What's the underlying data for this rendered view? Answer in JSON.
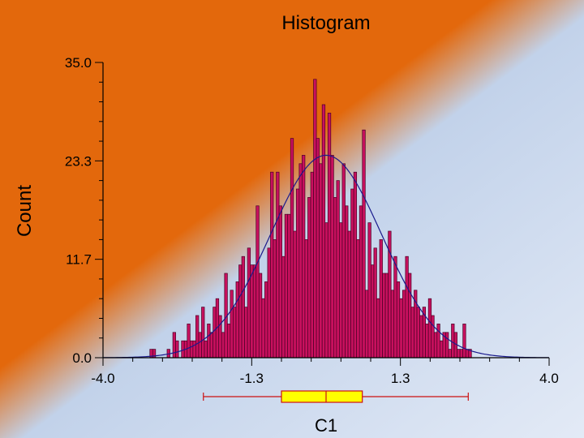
{
  "chart_data": {
    "type": "histogram",
    "title": "Histogram",
    "xlabel": "C1",
    "ylabel": "Count",
    "xlim": [
      -4.0,
      4.0
    ],
    "ylim": [
      0.0,
      35.0
    ],
    "x_ticks": [
      "-4.0",
      "-1.3",
      "1.3",
      "4.0"
    ],
    "y_ticks": [
      "0.0",
      "11.7",
      "23.3",
      "35.0"
    ],
    "bin_start": -3.16,
    "bin_width": 0.0515,
    "counts": [
      1,
      1,
      0,
      0,
      0,
      0,
      1,
      0,
      3,
      2,
      0,
      2,
      2,
      4,
      2,
      2,
      5,
      3,
      6,
      2,
      4,
      3,
      6,
      7,
      5,
      3,
      10,
      4,
      8,
      6,
      9,
      11,
      12,
      6,
      13,
      11,
      11,
      18,
      10,
      7,
      9,
      13,
      22,
      14,
      22,
      18,
      12,
      17,
      17,
      26,
      15,
      20,
      23,
      24,
      14,
      19,
      22,
      33,
      26,
      23,
      30,
      16,
      29,
      24,
      19,
      21,
      16,
      23,
      18,
      15,
      20,
      22,
      14,
      18,
      27,
      8,
      16,
      11,
      13,
      7,
      14,
      10,
      10,
      15,
      8,
      12,
      9,
      7,
      8,
      12,
      10,
      6,
      8,
      6,
      5,
      6,
      4,
      7,
      5,
      3,
      4,
      2,
      3,
      3,
      1,
      4,
      3,
      1,
      1,
      4,
      1,
      1
    ],
    "normal_fit": {
      "mean": 0.0,
      "sd": 1.0,
      "peak": 24.0
    },
    "boxplot": {
      "min": -2.2,
      "q1": -0.8,
      "median": 0.0,
      "q3": 0.65,
      "max": 2.55
    },
    "colors": {
      "bar_fill": "#C8105E",
      "bar_stroke": "#4A0025",
      "curve": "#1A1A8C",
      "bg_orange": "#E3680C",
      "bg_blue": "#C2D2EA",
      "box_fill": "#FFFF00",
      "box_stroke": "#CC1111"
    }
  }
}
